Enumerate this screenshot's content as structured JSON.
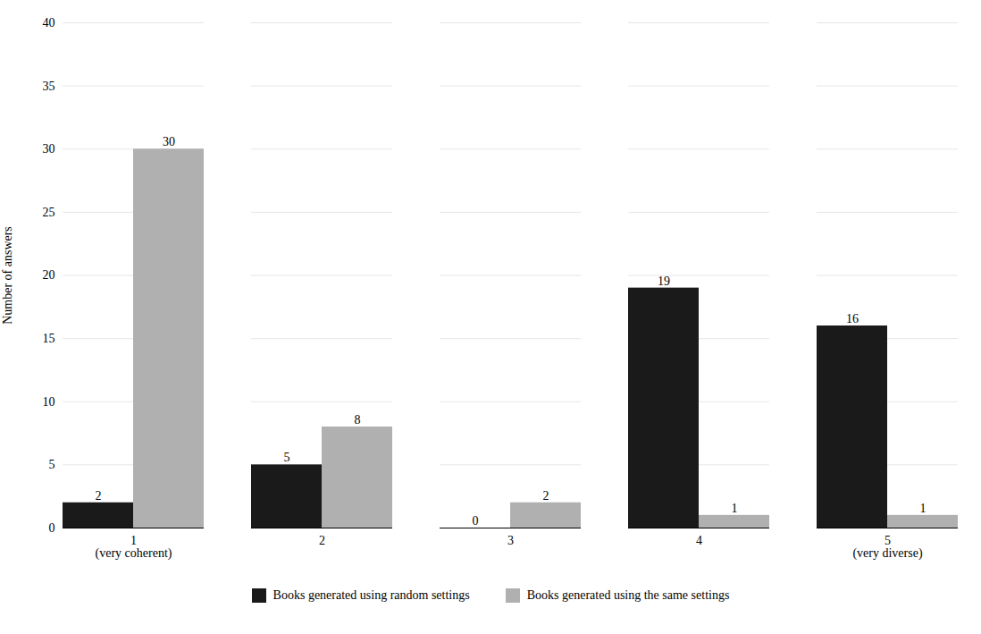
{
  "chart_data": {
    "type": "bar",
    "categories": [
      "1",
      "2",
      "3",
      "4",
      "5"
    ],
    "series": [
      {
        "name": "Books generated using random settings",
        "color": "#1a1a1a",
        "values": [
          2,
          5,
          0,
          19,
          16
        ]
      },
      {
        "name": "Books generated using the same settings",
        "color": "#b0b0b0",
        "values": [
          30,
          8,
          2,
          1,
          1
        ]
      }
    ],
    "ylabel": "Number of answers",
    "annotations": [
      {
        "text": "(very coherent)",
        "category": "1"
      },
      {
        "text": "(very diverse)",
        "category": "5"
      }
    ],
    "ylim": [
      0,
      40
    ],
    "yticks": [
      0,
      5,
      10,
      15,
      20,
      25,
      30,
      35,
      40
    ],
    "grid": true,
    "legend": "bottom",
    "data_labels": true
  }
}
